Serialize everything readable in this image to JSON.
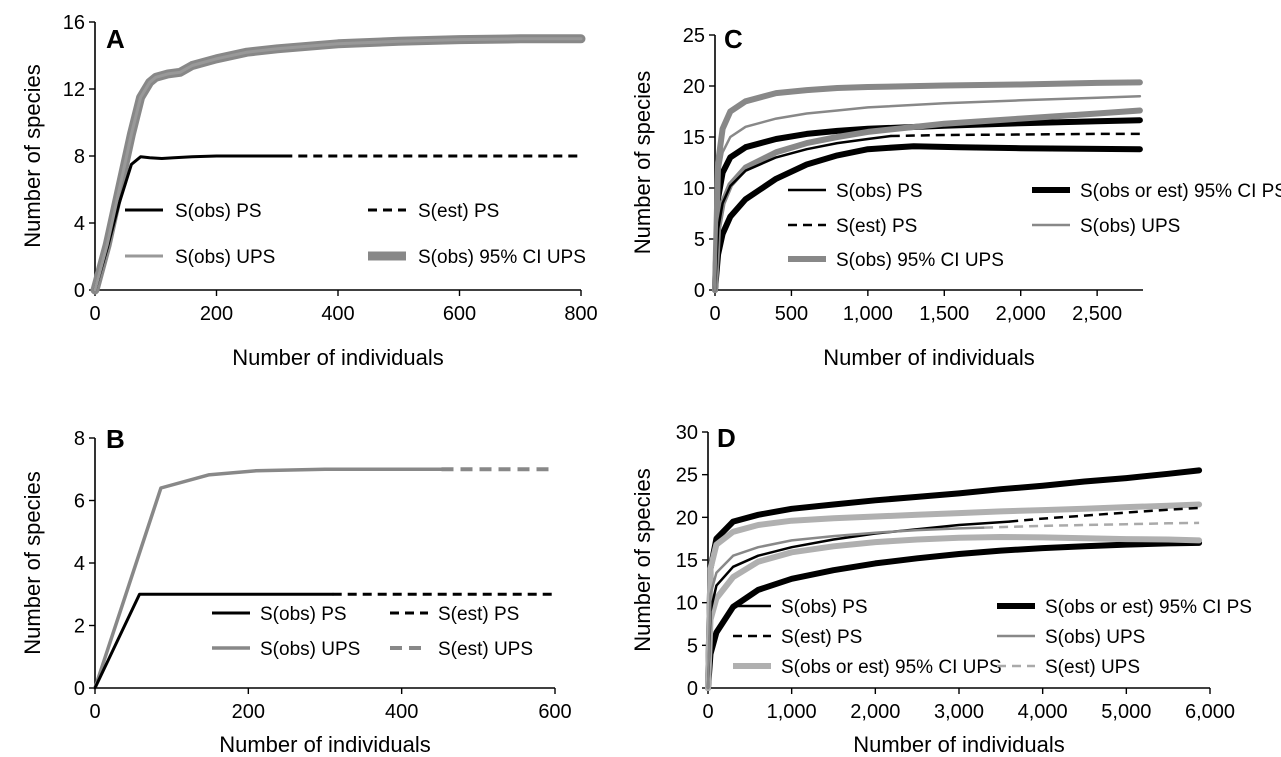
{
  "chart_data": [
    {
      "panel": "A",
      "type": "line",
      "xlabel": "Number of individuals",
      "ylabel": "Number of species",
      "xlim": [
        0,
        800
      ],
      "ylim": [
        0,
        16
      ],
      "xticks": [
        "0",
        "200",
        "400",
        "600",
        "800"
      ],
      "yticks": [
        "0",
        "4",
        "8",
        "12",
        "16"
      ],
      "legend_position": "middle",
      "series": [
        {
          "name": "S(obs) PS",
          "color": "#000000",
          "style": "solid",
          "width": 3,
          "x": [
            0,
            20,
            40,
            60,
            75,
            90,
            110,
            130,
            160,
            200,
            250,
            310
          ],
          "y": [
            0,
            2.5,
            5.2,
            7.5,
            7.95,
            7.9,
            7.85,
            7.9,
            7.95,
            8,
            8,
            8
          ]
        },
        {
          "name": "S(est) PS",
          "color": "#000000",
          "style": "dashed",
          "width": 3,
          "x": [
            310,
            800
          ],
          "y": [
            8,
            8
          ]
        },
        {
          "name": "S(obs) UPS",
          "color": "#999999",
          "style": "solid",
          "width": 3,
          "x": [
            0,
            20,
            40,
            60,
            75,
            90,
            100,
            120,
            140,
            160,
            200,
            250,
            300,
            400,
            500,
            600,
            700,
            800
          ],
          "y": [
            0,
            2.7,
            6,
            9.3,
            11.5,
            12.4,
            12.7,
            12.9,
            13,
            13.4,
            13.8,
            14.2,
            14.4,
            14.7,
            14.85,
            14.95,
            15,
            15
          ]
        },
        {
          "name": "S(obs) 95% CI UPS",
          "color": "#888888",
          "style": "solid",
          "width": 9,
          "x": [
            0,
            20,
            40,
            60,
            75,
            90,
            100,
            120,
            140,
            160,
            200,
            250,
            300,
            400,
            500,
            600,
            700,
            800
          ],
          "y": [
            0,
            2.7,
            6,
            9.3,
            11.5,
            12.4,
            12.7,
            12.9,
            13,
            13.4,
            13.8,
            14.2,
            14.4,
            14.7,
            14.85,
            14.95,
            15,
            15
          ]
        }
      ]
    },
    {
      "panel": "B",
      "type": "line",
      "xlabel": "Number of individuals",
      "ylabel": "Number of species",
      "xlim": [
        0,
        600
      ],
      "ylim": [
        0,
        8
      ],
      "xticks": [
        "0",
        "200",
        "400",
        "600"
      ],
      "yticks": [
        "0",
        "2",
        "4",
        "6",
        "8"
      ],
      "legend_position": "bottom-right",
      "series": [
        {
          "name": "S(obs) PS",
          "color": "#000000",
          "style": "solid",
          "width": 3,
          "x": [
            0,
            58,
            100,
            150,
            200,
            310
          ],
          "y": [
            0,
            3,
            3,
            3,
            3,
            3
          ]
        },
        {
          "name": "S(est) PS",
          "color": "#000000",
          "style": "dashed",
          "width": 3,
          "x": [
            310,
            600
          ],
          "y": [
            3,
            3
          ]
        },
        {
          "name": "S(obs) UPS",
          "color": "#888888",
          "style": "solid",
          "width": 3.5,
          "x": [
            0,
            86,
            148,
            210,
            300,
            452
          ],
          "y": [
            0,
            6.4,
            6.82,
            6.95,
            7,
            7
          ]
        },
        {
          "name": "S(est) UPS",
          "color": "#888888",
          "style": "dashed",
          "width": 4,
          "x": [
            452,
            600
          ],
          "y": [
            7,
            7
          ]
        }
      ]
    },
    {
      "panel": "C",
      "type": "line",
      "xlabel": "Number of individuals",
      "ylabel": "Number of species",
      "xlim": [
        0,
        2800
      ],
      "ylim": [
        0,
        25
      ],
      "xticks": [
        "0",
        "500",
        "1,000",
        "1,500",
        "2,000",
        "2,500"
      ],
      "yticks": [
        "0",
        "5",
        "10",
        "15",
        "20",
        "25"
      ],
      "legend_position": "middle",
      "series": [
        {
          "name": "S(obs) PS",
          "color": "#000000",
          "style": "solid",
          "width": 2.5,
          "x": [
            0,
            20,
            50,
            100,
            200,
            400,
            600,
            800,
            1000,
            1150
          ],
          "y": [
            0,
            6,
            8.5,
            10.2,
            11.7,
            13,
            13.8,
            14.4,
            14.8,
            15.1
          ]
        },
        {
          "name": "S(obs or est) 95% CI PS",
          "color": "#000000",
          "style": "solid",
          "width": 6,
          "x": [
            0,
            20,
            50,
            100,
            200,
            400,
            600,
            800,
            1000,
            1300,
            1600,
            2000,
            2400,
            2780
          ],
          "y": [
            0,
            3.5,
            5.5,
            7.2,
            8.9,
            10.9,
            12.3,
            13.2,
            13.8,
            14.1,
            14,
            13.9,
            13.85,
            13.8
          ]
        },
        {
          "name": "S(obs or est) 95% CI PS",
          "color": "#000000",
          "style": "solid",
          "width": 6,
          "x": [
            0,
            20,
            50,
            100,
            200,
            400,
            600,
            800,
            1000,
            1500,
            2000,
            2500,
            2780
          ],
          "y": [
            0,
            9,
            11.5,
            13,
            14,
            14.8,
            15.3,
            15.6,
            15.8,
            16.1,
            16.35,
            16.55,
            16.65
          ]
        },
        {
          "name": "S(est) PS",
          "color": "#000000",
          "style": "dashed",
          "width": 2.5,
          "x": [
            1150,
            1500,
            2000,
            2500,
            2780
          ],
          "y": [
            15.1,
            15.2,
            15.25,
            15.3,
            15.3
          ]
        },
        {
          "name": "S(obs) UPS",
          "color": "#888888",
          "style": "solid",
          "width": 2.5,
          "x": [
            0,
            20,
            50,
            100,
            200,
            400,
            600,
            800,
            1000,
            1500,
            2000,
            2500,
            2780
          ],
          "y": [
            0,
            11,
            13.5,
            15,
            16,
            16.8,
            17.3,
            17.6,
            17.9,
            18.3,
            18.6,
            18.85,
            19
          ]
        },
        {
          "name": "S(obs) 95% CI UPS",
          "color": "#888888",
          "style": "solid",
          "width": 6,
          "x": [
            0,
            20,
            50,
            100,
            200,
            400,
            600,
            800,
            1000,
            1500,
            2000,
            2500,
            2780
          ],
          "y": [
            0,
            12.5,
            15.8,
            17.5,
            18.5,
            19.3,
            19.6,
            19.8,
            19.9,
            20.05,
            20.15,
            20.3,
            20.35
          ]
        },
        {
          "name": "S(obs) 95% CI UPS",
          "color": "#888888",
          "style": "solid",
          "width": 6,
          "x": [
            0,
            20,
            50,
            100,
            200,
            400,
            600,
            800,
            1000,
            1500,
            2000,
            2500,
            2780
          ],
          "y": [
            0,
            6,
            8.5,
            10.3,
            12,
            13.5,
            14.4,
            15,
            15.5,
            16.3,
            16.8,
            17.3,
            17.6
          ]
        }
      ]
    },
    {
      "panel": "D",
      "type": "line",
      "xlabel": "Number of individuals",
      "ylabel": "Number of species",
      "xlim": [
        0,
        6000
      ],
      "ylim": [
        0,
        30
      ],
      "xticks": [
        "0",
        "1,000",
        "2,000",
        "3,000",
        "4,000",
        "5,000",
        "6,000"
      ],
      "yticks": [
        "0",
        "5",
        "10",
        "15",
        "20",
        "25",
        "30"
      ],
      "legend_position": "bottom",
      "series": [
        {
          "name": "S(obs) PS",
          "color": "#000000",
          "style": "solid",
          "width": 2.5,
          "x": [
            0,
            30,
            100,
            300,
            600,
            1000,
            1500,
            2000,
            2500,
            3000,
            3600
          ],
          "y": [
            0,
            9,
            12,
            14.2,
            15.5,
            16.5,
            17.4,
            18.1,
            18.6,
            19.1,
            19.5
          ]
        },
        {
          "name": "S(est) PS",
          "color": "#000000",
          "style": "dashed",
          "width": 2.5,
          "x": [
            3600,
            4000,
            4500,
            5000,
            5500,
            5870
          ],
          "y": [
            19.5,
            19.85,
            20.2,
            20.55,
            20.9,
            21.1
          ]
        },
        {
          "name": "S(obs or est) 95% CI PS",
          "color": "#000000",
          "style": "solid",
          "width": 6,
          "x": [
            0,
            30,
            100,
            300,
            600,
            1000,
            1500,
            2000,
            2500,
            3000,
            3500,
            4000,
            4500,
            5000,
            5500,
            5870
          ],
          "y": [
            0,
            14,
            17.5,
            19.5,
            20.3,
            21,
            21.5,
            22,
            22.4,
            22.8,
            23.3,
            23.7,
            24.2,
            24.6,
            25.1,
            25.5
          ]
        },
        {
          "name": "S(obs or est) 95% CI PS",
          "color": "#000000",
          "style": "solid",
          "width": 6,
          "x": [
            0,
            30,
            100,
            300,
            600,
            1000,
            1500,
            2000,
            2500,
            3000,
            3500,
            4000,
            4500,
            5000,
            5500,
            5870
          ],
          "y": [
            0,
            4,
            6.5,
            9.5,
            11.5,
            12.8,
            13.8,
            14.6,
            15.2,
            15.7,
            16.1,
            16.4,
            16.6,
            16.8,
            16.95,
            17
          ]
        },
        {
          "name": "S(obs) UPS",
          "color": "#888888",
          "style": "solid",
          "width": 2.5,
          "x": [
            0,
            30,
            100,
            300,
            600,
            1000,
            1500,
            2000,
            2500,
            3000,
            3300
          ],
          "y": [
            0,
            11,
            13.5,
            15.5,
            16.5,
            17.3,
            17.8,
            18.2,
            18.5,
            18.7,
            18.8
          ]
        },
        {
          "name": "S(est) UPS",
          "color": "#aaaaaa",
          "style": "dashed",
          "width": 2.5,
          "x": [
            3300,
            4000,
            4500,
            5000,
            5500,
            5870
          ],
          "y": [
            18.8,
            19,
            19.1,
            19.2,
            19.3,
            19.35
          ]
        },
        {
          "name": "S(obs or est) 95% CI UPS",
          "color": "#b0b0b0",
          "style": "solid",
          "width": 6,
          "x": [
            0,
            30,
            100,
            300,
            600,
            1000,
            1500,
            2000,
            2500,
            3000,
            3500,
            4000,
            4500,
            5000,
            5500,
            5870
          ],
          "y": [
            0,
            14,
            16.8,
            18.3,
            19.1,
            19.6,
            19.9,
            20.1,
            20.3,
            20.5,
            20.7,
            20.85,
            21,
            21.2,
            21.35,
            21.5
          ]
        },
        {
          "name": "S(obs or est) 95% CI UPS",
          "color": "#b0b0b0",
          "style": "solid",
          "width": 6,
          "x": [
            0,
            30,
            100,
            300,
            600,
            1000,
            1500,
            2000,
            2500,
            3000,
            3500,
            4000,
            4500,
            5000,
            5500,
            5870
          ],
          "y": [
            0,
            8,
            10.5,
            13,
            14.8,
            15.9,
            16.6,
            17.1,
            17.4,
            17.6,
            17.7,
            17.65,
            17.55,
            17.45,
            17.4,
            17.3
          ]
        }
      ]
    }
  ]
}
